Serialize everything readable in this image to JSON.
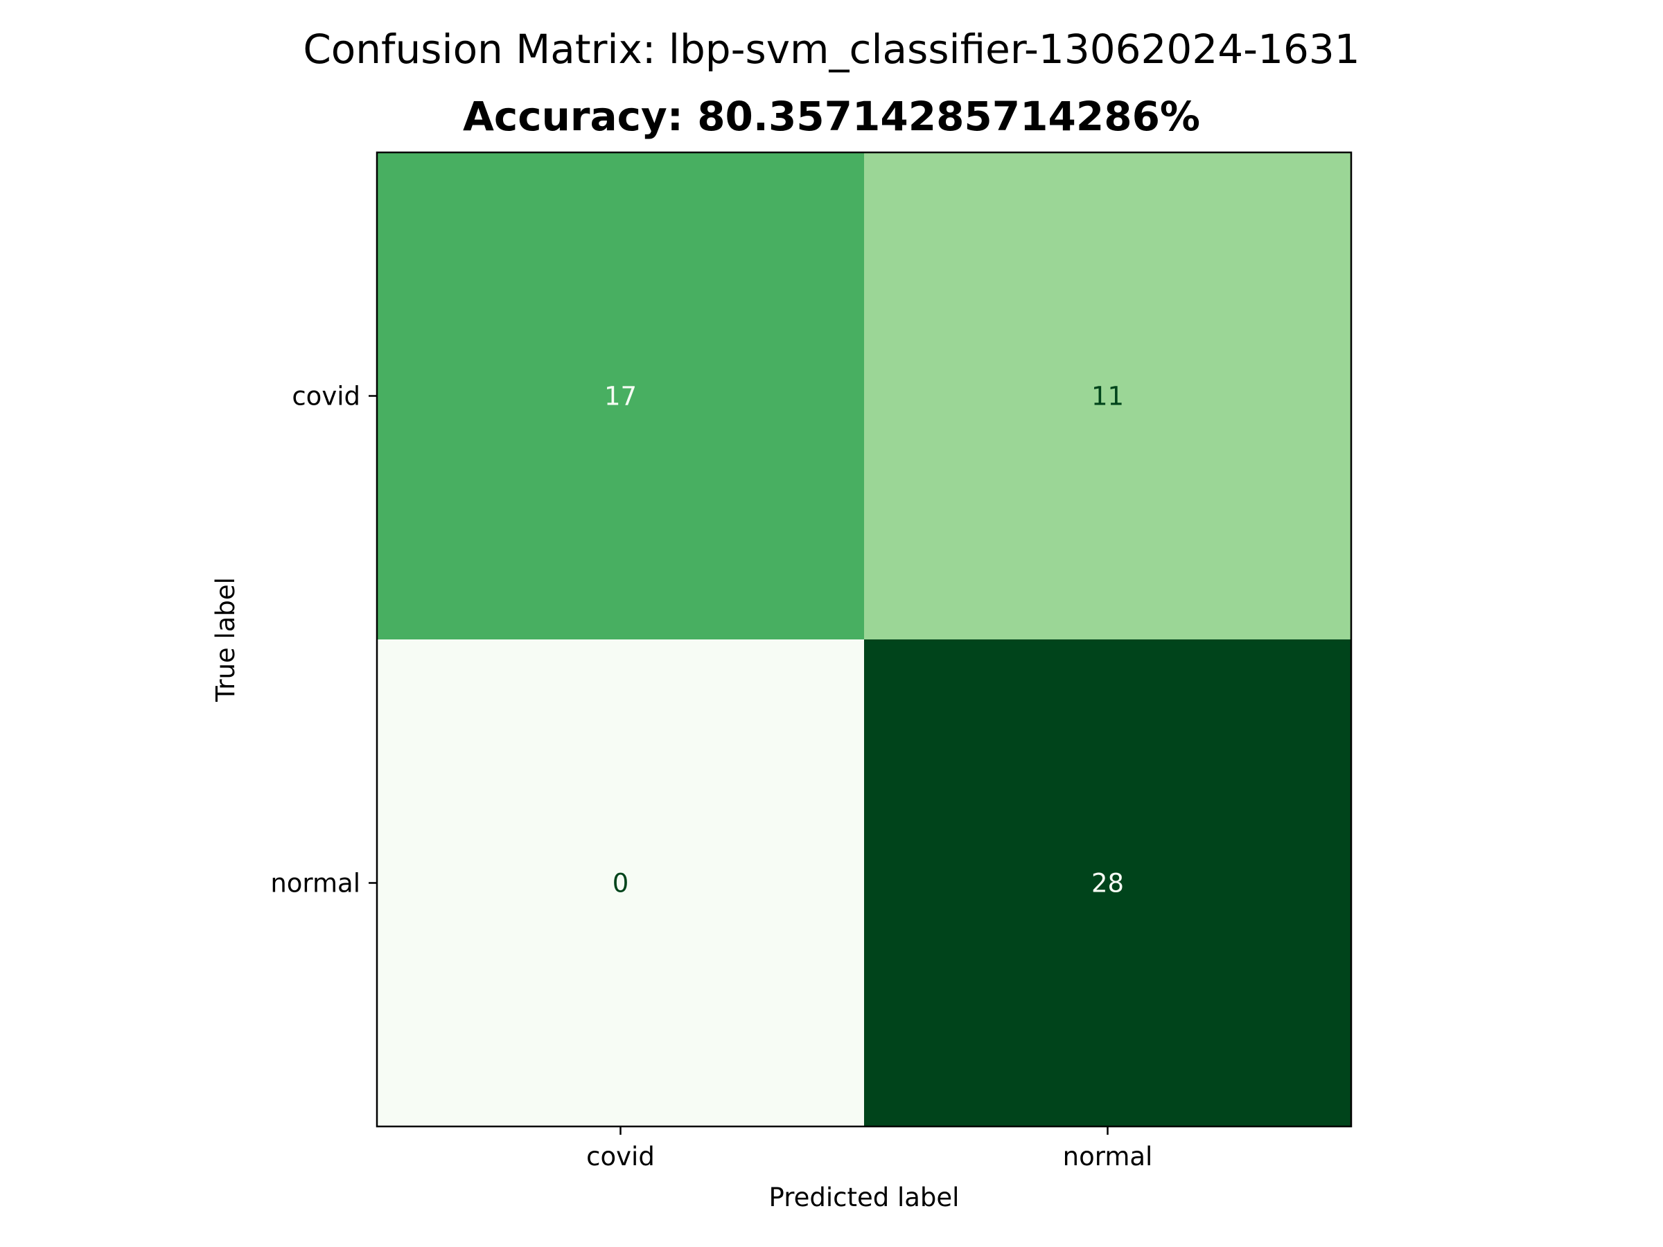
{
  "chart_data": {
    "type": "heatmap",
    "title": "Confusion Matrix: lbp-svm_classifier-13062024-1631",
    "subtitle": "Accuracy: 80.35714285714286%",
    "xlabel": "Predicted label",
    "ylabel": "True label",
    "x_categories": [
      "covid",
      "normal"
    ],
    "y_categories": [
      "covid",
      "normal"
    ],
    "values": [
      [
        17,
        11
      ],
      [
        0,
        28
      ]
    ],
    "value_range": [
      0,
      28
    ],
    "colormap": "Greens",
    "colorbar": false
  }
}
